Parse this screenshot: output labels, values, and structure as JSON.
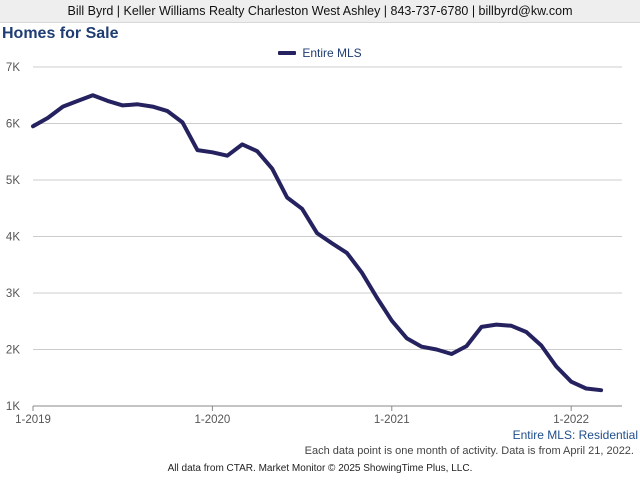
{
  "header": {
    "agent_line": "Bill Byrd | Keller Williams Realty Charleston West Ashley | 843-737-6780 | billbyrd@kw.com"
  },
  "subtitle": "Entire MLS: Residential",
  "note": "Each data point is one month of activity. Data is from April 21, 2022.",
  "footer": "All data from CTAR. Market Monitor © 2025 ShowingTime Plus, LLC.",
  "colors": {
    "series": "#25225f",
    "title": "#1f3d73",
    "grid": "#cccccc"
  },
  "chart_data": {
    "type": "line",
    "title": "Homes for Sale",
    "xlabel": "",
    "ylabel": "",
    "ylim": [
      1000,
      7000
    ],
    "yticks": [
      1000,
      2000,
      3000,
      4000,
      5000,
      6000,
      7000
    ],
    "ytick_labels": [
      "1K",
      "2K",
      "3K",
      "4K",
      "5K",
      "6K",
      "7K"
    ],
    "xtick_labels": [
      "1-2019",
      "1-2020",
      "1-2021",
      "1-2022"
    ],
    "xticks": [
      "2019-01",
      "2020-01",
      "2021-01",
      "2022-01"
    ],
    "grid": true,
    "legend_position": "top-center",
    "series": [
      {
        "name": "Entire MLS",
        "x": [
          "2019-01",
          "2019-02",
          "2019-03",
          "2019-04",
          "2019-05",
          "2019-06",
          "2019-07",
          "2019-08",
          "2019-09",
          "2019-10",
          "2019-11",
          "2019-12",
          "2020-01",
          "2020-02",
          "2020-03",
          "2020-04",
          "2020-05",
          "2020-06",
          "2020-07",
          "2020-08",
          "2020-09",
          "2020-10",
          "2020-11",
          "2020-12",
          "2021-01",
          "2021-02",
          "2021-03",
          "2021-04",
          "2021-05",
          "2021-06",
          "2021-07",
          "2021-08",
          "2021-09",
          "2021-10",
          "2021-11",
          "2021-12",
          "2022-01",
          "2022-02",
          "2022-03"
        ],
        "values": [
          5950,
          6100,
          6300,
          6400,
          6500,
          6400,
          6320,
          6340,
          6300,
          6220,
          6020,
          5530,
          5490,
          5430,
          5630,
          5510,
          5200,
          4690,
          4490,
          4060,
          3880,
          3710,
          3360,
          2920,
          2510,
          2200,
          2050,
          2000,
          1920,
          2060,
          2400,
          2440,
          2420,
          2310,
          2070,
          1700,
          1430,
          1310,
          1280
        ]
      }
    ]
  }
}
